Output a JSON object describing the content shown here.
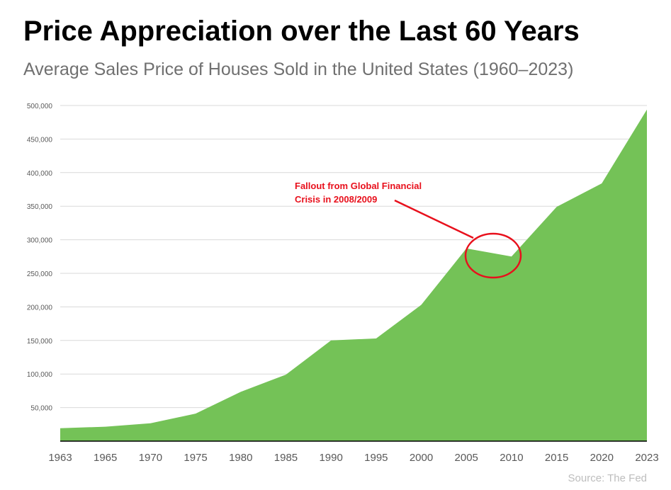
{
  "chart_data": {
    "type": "area",
    "title": "Price Appreciation over the Last 60 Years",
    "subtitle": "Average Sales Price of Houses Sold in the United States (1960–2023)",
    "categories": [
      "1963",
      "1965",
      "1970",
      "1975",
      "1980",
      "1985",
      "1990",
      "1995",
      "2000",
      "2005",
      "2010",
      "2015",
      "2020",
      "2023"
    ],
    "values": [
      19300,
      21500,
      26600,
      41000,
      73500,
      99000,
      150000,
      153000,
      203000,
      287000,
      275000,
      349000,
      384000,
      494000
    ],
    "ylim": [
      0,
      500000
    ],
    "yticks": [
      50000,
      100000,
      150000,
      200000,
      250000,
      300000,
      350000,
      400000,
      450000,
      500000
    ],
    "ytick_labels": [
      "50,000",
      "100,000",
      "150,000",
      "200,000",
      "250,000",
      "300,000",
      "350,000",
      "400,000",
      "450,000",
      "500,000"
    ],
    "grid": true,
    "fill_color": "#74c257",
    "annotation": {
      "line1": "Fallout from Global Financial",
      "line2": "Crisis in 2008/2009",
      "color": "#e8101c"
    },
    "source": "Source: The Fed"
  }
}
